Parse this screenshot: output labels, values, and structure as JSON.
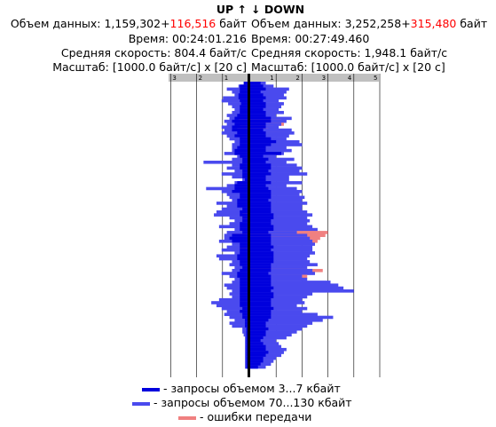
{
  "header": {
    "up_title": "UP ↑",
    "down_title": "↓ DOWN"
  },
  "up": {
    "volume_label": "Объем данных: ",
    "volume_value": "1,159,302+",
    "volume_extra": "116,516",
    "volume_unit": " байт",
    "time": "Время: 00:24:01.216",
    "speed": "Средняя скорость: 804.4 байт/с",
    "scale": "Масштаб: [1000.0 байт/с] x [20 с]"
  },
  "down": {
    "volume_label": "Объем данных: ",
    "volume_value": "3,252,258+",
    "volume_extra": "315,480",
    "volume_unit": " байт",
    "time": "Время: 00:27:49.460",
    "speed": "Средняя скорость: 1,948.1 байт/с",
    "scale": "Масштаб: [1000.0 байт/с] x [20 с]"
  },
  "colors": {
    "small_requests": "#0000dd",
    "large_requests": "#4a4aee",
    "errors": "#f08080",
    "axis_bar": "#c0c0c0",
    "grid": "#000000",
    "extra_text": "#ff0000"
  },
  "legend": {
    "small": "- запросы объемом 3...7 кбайт",
    "large": "- запросы объемом 70...130 кбайт",
    "errors": "- ошибки передачи"
  },
  "chart_data": {
    "type": "bar",
    "orientation": "horizontal-mirrored",
    "x_unit": "1000 байт/с",
    "y_unit": "20 с",
    "up_axis": {
      "ticks": [
        "3",
        "2",
        "1"
      ],
      "max": 3.2
    },
    "down_axis": {
      "ticks": [
        "1",
        "2",
        "3",
        "4",
        "5"
      ],
      "max": 5
    },
    "series": [
      {
        "name": "запросы объемом 3...7 кбайт",
        "key": "small"
      },
      {
        "name": "запросы объемом 70...130 кбайт",
        "key": "large"
      },
      {
        "name": "ошибки передачи",
        "key": "errors"
      }
    ],
    "rows_up": [
      [
        0.15,
        0.1,
        0
      ],
      [
        0.3,
        0.35,
        0
      ],
      [
        0.3,
        0.8,
        0
      ],
      [
        0.3,
        0.6,
        0
      ],
      [
        0.35,
        0.5,
        0
      ],
      [
        0.35,
        0.95,
        0
      ],
      [
        0.3,
        1.0,
        0
      ],
      [
        0.25,
        0.75,
        0
      ],
      [
        0.3,
        0.6,
        0
      ],
      [
        0.3,
        0.5,
        0
      ],
      [
        0.3,
        0.6,
        0
      ],
      [
        0.4,
        0.8,
        0
      ],
      [
        0.5,
        0.7,
        0.3
      ],
      [
        0.6,
        0.9,
        0.35
      ],
      [
        0.5,
        0.8,
        0
      ],
      [
        0.6,
        1.0,
        0.3
      ],
      [
        0.6,
        0.9,
        0.4
      ],
      [
        0.4,
        1.0,
        0.3
      ],
      [
        0.5,
        0.8,
        0
      ],
      [
        0.3,
        0.7,
        0.2
      ],
      [
        0.3,
        0.5,
        0
      ],
      [
        0.3,
        0.6,
        0
      ],
      [
        0.4,
        0.6,
        0
      ],
      [
        0.5,
        0.6,
        0
      ],
      [
        0.5,
        0.9,
        0
      ],
      [
        0.3,
        0.4,
        0
      ],
      [
        0.2,
        0.6,
        0
      ],
      [
        0.2,
        1.7,
        0
      ],
      [
        0.3,
        0.6,
        0
      ],
      [
        0.3,
        0.8,
        0
      ],
      [
        0.2,
        0.5,
        0
      ],
      [
        0.2,
        1.0,
        0
      ],
      [
        0.2,
        0.6,
        0
      ],
      [
        0.1,
        0.2,
        0
      ],
      [
        0.4,
        0.5,
        0.3
      ],
      [
        0.5,
        0.8,
        0
      ],
      [
        0.5,
        1.6,
        0
      ],
      [
        0.6,
        1.0,
        0
      ],
      [
        0.3,
        0.8,
        0
      ],
      [
        0.3,
        0.7,
        0
      ],
      [
        0.4,
        0.6,
        0
      ],
      [
        0.4,
        1.2,
        0
      ],
      [
        0.4,
        0.8,
        0
      ],
      [
        0.2,
        1.0,
        0
      ],
      [
        0.3,
        1.2,
        0
      ],
      [
        0.3,
        1.3,
        0.2
      ],
      [
        0.2,
        0.7,
        0.2
      ],
      [
        0.2,
        0.5,
        0.2
      ],
      [
        0.3,
        0.7,
        0
      ],
      [
        0.3,
        1.1,
        0
      ],
      [
        0.3,
        0.5,
        0
      ],
      [
        0.2,
        0.8,
        0.3
      ],
      [
        0.6,
        0.9,
        0.6
      ],
      [
        0.7,
        0.9,
        0
      ],
      [
        0.6,
        1.1,
        0
      ],
      [
        0.3,
        0.6,
        0
      ],
      [
        0.3,
        0.8,
        0
      ],
      [
        0.3,
        1.0,
        0.3
      ],
      [
        0.3,
        0.5,
        0
      ],
      [
        0.4,
        1.2,
        0
      ],
      [
        0.4,
        1.1,
        0
      ],
      [
        0.3,
        0.6,
        0
      ],
      [
        0.3,
        0.7,
        0
      ],
      [
        0.2,
        0.5,
        0
      ],
      [
        0.3,
        0.6,
        0
      ],
      [
        0.4,
        1.0,
        0
      ],
      [
        0.4,
        0.7,
        0
      ],
      [
        0.3,
        0.5,
        0
      ],
      [
        0.3,
        0.6,
        0
      ],
      [
        0.3,
        0.9,
        0
      ],
      [
        0.3,
        0.8,
        0
      ],
      [
        0.3,
        0.6,
        0
      ],
      [
        0.3,
        0.7,
        0
      ],
      [
        0.3,
        0.6,
        0
      ],
      [
        0.3,
        1.1,
        0
      ],
      [
        0.3,
        1.4,
        0
      ],
      [
        0.3,
        1.2,
        0
      ],
      [
        0.2,
        1.0,
        0
      ],
      [
        0.3,
        0.8,
        0
      ],
      [
        0.2,
        0.9,
        0
      ],
      [
        0.2,
        0.7,
        0
      ],
      [
        0.1,
        0.5,
        0
      ],
      [
        0.1,
        0.7,
        0
      ],
      [
        0.1,
        0.6,
        0
      ],
      [
        0.05,
        0.2,
        0
      ],
      [
        0.05,
        0.2,
        0
      ],
      [
        0.05,
        0.15,
        0
      ],
      [
        0.05,
        0.1,
        0
      ],
      [
        0.05,
        0.1,
        0
      ],
      [
        0.05,
        0.1,
        0
      ],
      [
        0.05,
        0.1,
        0
      ],
      [
        0.05,
        0.1,
        0
      ],
      [
        0.05,
        0.1,
        0
      ],
      [
        0.05,
        0.1,
        0
      ],
      [
        0.05,
        0.1,
        0
      ],
      [
        0.05,
        0.1,
        0
      ],
      [
        0.05,
        0.1,
        0
      ],
      [
        0.05,
        0.1,
        0
      ]
    ],
    "rows_down": [
      [
        0.4,
        0.6,
        0
      ],
      [
        0.5,
        0.9,
        0
      ],
      [
        0.6,
        1.5,
        0
      ],
      [
        0.4,
        1.4,
        0
      ],
      [
        0.5,
        1.3,
        0
      ],
      [
        0.6,
        1.4,
        0
      ],
      [
        0.5,
        1.1,
        0
      ],
      [
        0.6,
        1.3,
        0
      ],
      [
        0.6,
        1.2,
        0
      ],
      [
        0.5,
        1.1,
        0
      ],
      [
        0.6,
        1.3,
        0
      ],
      [
        0.6,
        1.0,
        0
      ],
      [
        0.8,
        1.6,
        0.6
      ],
      [
        0.8,
        1.4,
        1.2
      ],
      [
        0.6,
        1.2,
        1.3
      ],
      [
        0.6,
        1.1,
        0.9
      ],
      [
        0.5,
        1.6,
        0.7
      ],
      [
        0.6,
        1.7,
        1.3
      ],
      [
        0.6,
        1.5,
        0
      ],
      [
        0.8,
        1.4,
        0
      ],
      [
        1.0,
        1.9,
        0
      ],
      [
        0.8,
        2.0,
        0
      ],
      [
        0.6,
        1.4,
        0
      ],
      [
        0.6,
        1.6,
        0
      ],
      [
        1.2,
        1.3,
        0
      ],
      [
        0.5,
        1.0,
        0
      ],
      [
        0.7,
        1.7,
        0
      ],
      [
        0.6,
        1.4,
        0
      ],
      [
        0.8,
        1.8,
        0
      ],
      [
        0.8,
        2.0,
        0
      ],
      [
        0.7,
        1.9,
        0
      ],
      [
        0.8,
        2.2,
        0
      ],
      [
        0.6,
        1.5,
        0
      ],
      [
        0.6,
        1.5,
        0
      ],
      [
        0.8,
        2.0,
        0
      ],
      [
        0.6,
        1.4,
        0
      ],
      [
        0.7,
        1.8,
        0
      ],
      [
        0.8,
        2.0,
        0
      ],
      [
        0.8,
        1.9,
        0
      ],
      [
        0.8,
        2.1,
        0
      ],
      [
        0.7,
        2.0,
        0
      ],
      [
        0.8,
        2.2,
        0
      ],
      [
        0.8,
        2.0,
        0
      ],
      [
        0.8,
        2.0,
        0
      ],
      [
        0.8,
        2.2,
        0
      ],
      [
        0.9,
        2.4,
        0
      ],
      [
        0.9,
        2.2,
        0
      ],
      [
        0.8,
        2.3,
        0
      ],
      [
        0.8,
        2.2,
        0
      ],
      [
        0.9,
        2.4,
        0
      ],
      [
        0.9,
        2.6,
        0
      ],
      [
        0.7,
        1.8,
        3.0
      ],
      [
        0.8,
        2.2,
        2.9
      ],
      [
        0.8,
        2.3,
        2.7
      ],
      [
        0.8,
        2.4,
        2.6
      ],
      [
        0.8,
        2.5,
        0
      ],
      [
        0.9,
        2.4,
        0
      ],
      [
        0.8,
        2.4,
        0
      ],
      [
        0.9,
        2.5,
        0
      ],
      [
        0.9,
        2.3,
        0
      ],
      [
        0.9,
        2.2,
        0
      ],
      [
        0.9,
        2.3,
        0
      ],
      [
        0.8,
        2.6,
        0
      ],
      [
        0.8,
        2.2,
        0
      ],
      [
        0.8,
        2.4,
        2.8
      ],
      [
        0.7,
        2.5,
        0
      ],
      [
        0.8,
        2.0,
        2.2
      ],
      [
        0.8,
        2.2,
        0
      ],
      [
        0.8,
        3.1,
        0
      ],
      [
        0.8,
        3.4,
        0
      ],
      [
        0.9,
        3.6,
        0
      ],
      [
        0.8,
        4.0,
        0
      ],
      [
        0.9,
        2.4,
        0
      ],
      [
        0.9,
        2.2,
        0
      ],
      [
        0.8,
        2.0,
        0
      ],
      [
        0.8,
        2.1,
        0
      ],
      [
        0.8,
        1.8,
        0
      ],
      [
        0.9,
        2.2,
        0
      ],
      [
        0.8,
        2.0,
        0
      ],
      [
        0.8,
        2.6,
        0
      ],
      [
        0.8,
        3.2,
        0
      ],
      [
        0.7,
        2.8,
        0
      ],
      [
        0.6,
        2.4,
        0
      ],
      [
        0.6,
        2.2,
        0
      ],
      [
        0.7,
        2.0,
        0
      ],
      [
        0.6,
        1.8,
        0
      ],
      [
        0.6,
        1.6,
        0
      ],
      [
        0.5,
        1.4,
        0
      ],
      [
        0.4,
        1.0,
        0
      ],
      [
        0.5,
        1.1,
        0
      ],
      [
        0.6,
        1.2,
        0
      ],
      [
        0.6,
        1.4,
        0
      ],
      [
        0.7,
        1.3,
        0
      ],
      [
        0.6,
        1.2,
        0
      ],
      [
        0.5,
        1.0,
        0
      ],
      [
        0.5,
        0.9,
        0
      ],
      [
        0.4,
        0.8,
        0
      ],
      [
        0.3,
        0.6,
        0
      ]
    ]
  }
}
